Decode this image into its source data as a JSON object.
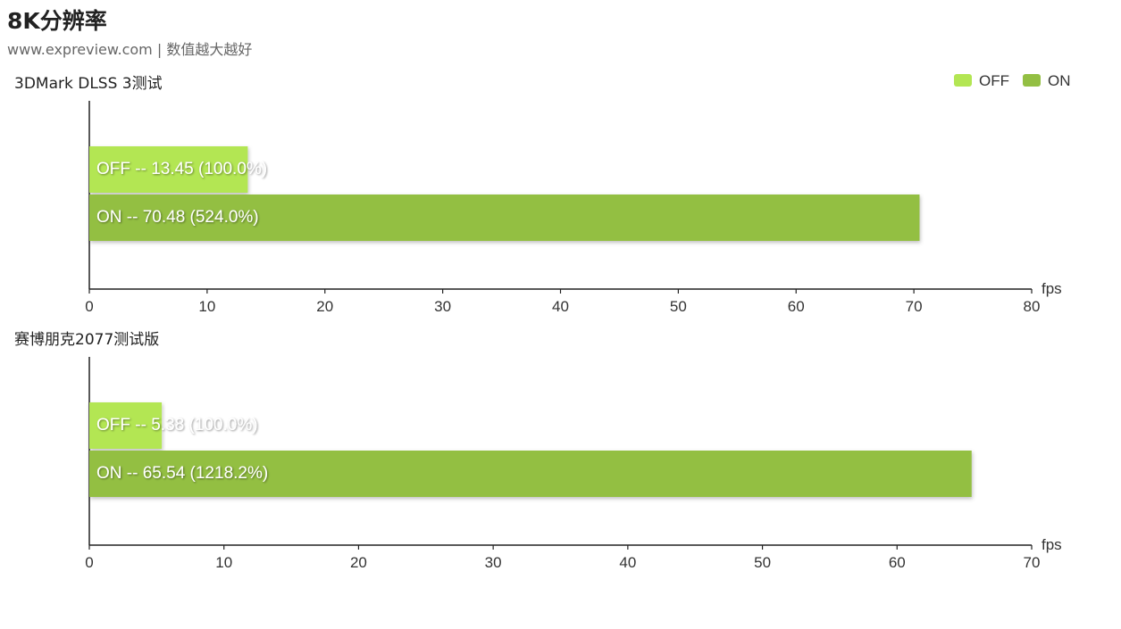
{
  "page": {
    "title": "8K分辨率",
    "subtitle": "www.expreview.com | 数值越大越好"
  },
  "legend": {
    "position": "top-right",
    "items": [
      {
        "label": "OFF",
        "color": "#b3e653"
      },
      {
        "label": "ON",
        "color": "#93bf43"
      }
    ]
  },
  "chart_data": [
    {
      "type": "bar",
      "orientation": "horizontal",
      "title": "3DMark DLSS 3测试",
      "xlabel": "fps",
      "xlim": [
        0,
        80
      ],
      "ticks": [
        0,
        10,
        20,
        30,
        40,
        50,
        60,
        70,
        80
      ],
      "series": [
        {
          "name": "OFF",
          "value": 13.45,
          "label": "OFF  --  13.45 (100.0%)",
          "color": "#b3e653"
        },
        {
          "name": "ON",
          "value": 70.48,
          "label": "ON  --  70.48 (524.0%)",
          "color": "#93bf43"
        }
      ]
    },
    {
      "type": "bar",
      "orientation": "horizontal",
      "title": "赛博朋克2077测试版",
      "xlabel": "fps",
      "xlim": [
        0,
        70
      ],
      "ticks": [
        0,
        10,
        20,
        30,
        40,
        50,
        60,
        70
      ],
      "series": [
        {
          "name": "OFF",
          "value": 5.38,
          "label": "OFF  --  5.38 (100.0%)",
          "color": "#b3e653"
        },
        {
          "name": "ON",
          "value": 65.54,
          "label": "ON  --  65.54 (1218.2%)",
          "color": "#93bf43"
        }
      ]
    }
  ]
}
